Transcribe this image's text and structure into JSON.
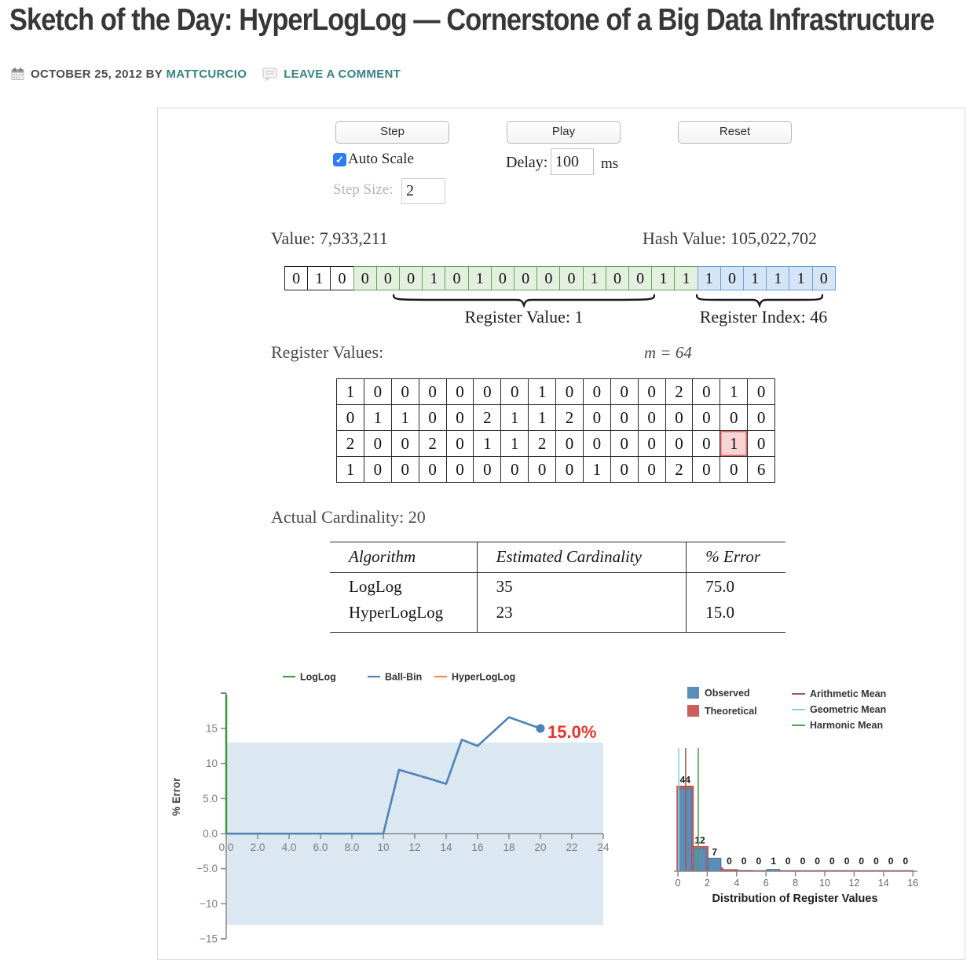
{
  "header": {
    "title": "Sketch of the Day: HyperLogLog — Cornerstone of a Big Data Infrastructure",
    "date": "OCTOBER 25, 2012",
    "by": "BY",
    "author": "MATTCURCIO",
    "comment_link": "LEAVE A COMMENT"
  },
  "controls": {
    "step_label": "Step",
    "play_label": "Play",
    "reset_label": "Reset",
    "auto_scale_label": "Auto Scale",
    "auto_scale_checked": "✓",
    "step_size_label": "Step Size:",
    "step_size_value": "2",
    "delay_label": "Delay:",
    "delay_value": "100",
    "delay_unit": "ms"
  },
  "hash_panel": {
    "value_label": "Value: 7,933,211",
    "hash_label": "Hash Value: 105,022,702",
    "bit_segments": [
      {
        "name": "unused",
        "bits": [
          "0",
          "1",
          "0"
        ]
      },
      {
        "name": "register_value_bits",
        "bits": [
          "0",
          "0",
          "0",
          "1",
          "0",
          "1",
          "0",
          "0",
          "0",
          "0",
          "1",
          "0",
          "0",
          "1",
          "1"
        ]
      },
      {
        "name": "register_index_bits",
        "bits": [
          "1",
          "0",
          "1",
          "1",
          "1",
          "0"
        ]
      }
    ],
    "register_value_label": "Register Value: 1",
    "register_index_label": "Register Index: 46"
  },
  "registers": {
    "label": "Register Values:",
    "m_label": "m = 64",
    "rows": [
      [
        "1",
        "0",
        "0",
        "0",
        "0",
        "0",
        "0",
        "1",
        "0",
        "0",
        "0",
        "0",
        "2",
        "0",
        "1",
        "0"
      ],
      [
        "0",
        "1",
        "1",
        "0",
        "0",
        "2",
        "1",
        "1",
        "2",
        "0",
        "0",
        "0",
        "0",
        "0",
        "0",
        "0"
      ],
      [
        "2",
        "0",
        "0",
        "2",
        "0",
        "1",
        "1",
        "2",
        "0",
        "0",
        "0",
        "0",
        "0",
        "0",
        "1",
        "0"
      ],
      [
        "1",
        "0",
        "0",
        "0",
        "0",
        "0",
        "0",
        "0",
        "0",
        "1",
        "0",
        "0",
        "2",
        "0",
        "0",
        "6"
      ]
    ],
    "highlight": {
      "row": 2,
      "col": 14
    }
  },
  "cardinality": {
    "label": "Actual Cardinality: 20",
    "headers": [
      "Algorithm",
      "Estimated Cardinality",
      "% Error"
    ],
    "rows": [
      [
        "LogLog",
        "35",
        "75.0"
      ],
      [
        "HyperLogLog",
        "23",
        "15.0"
      ]
    ]
  },
  "chart_data": [
    {
      "type": "line",
      "ylabel": "% Error",
      "xlim": [
        0,
        24
      ],
      "ylim": [
        -15,
        20
      ],
      "grid": false,
      "legend_position": "top",
      "legend": [
        {
          "name": "LogLog",
          "color": "#3f9b42"
        },
        {
          "name": "Ball-Bin",
          "color": "#4c82b6"
        },
        {
          "name": "HyperLogLog",
          "color": "#f28e44"
        }
      ],
      "band": {
        "y0": -13,
        "y1": 13,
        "color": "#dbe7f1"
      },
      "vertical_marker": {
        "x": 0,
        "color": "#3f9b42"
      },
      "series": [
        {
          "name": "Ball-Bin",
          "color": "#4c82b6",
          "points": [
            [
              0,
              0
            ],
            [
              1,
              0
            ],
            [
              2,
              0
            ],
            [
              3,
              0
            ],
            [
              4,
              0
            ],
            [
              5,
              0
            ],
            [
              6,
              0
            ],
            [
              7,
              0
            ],
            [
              8,
              0
            ],
            [
              9,
              0
            ],
            [
              10,
              0
            ],
            [
              11,
              9.1
            ],
            [
              12,
              8.45
            ],
            [
              13,
              7.8
            ],
            [
              14,
              7.1
            ],
            [
              15,
              13.4
            ],
            [
              16,
              12.5
            ],
            [
              18,
              16.6
            ],
            [
              20,
              15.0
            ]
          ]
        }
      ],
      "end_point": [
        20,
        15.0
      ],
      "end_label": {
        "text": "15.0%",
        "color": "#e53530"
      },
      "yticks": [
        [
          15,
          "15"
        ],
        [
          10,
          "10"
        ],
        [
          5,
          "5.0"
        ],
        [
          0,
          "0.0"
        ],
        [
          -5,
          "−5.0"
        ],
        [
          -10,
          "−10"
        ],
        [
          -15,
          "−15"
        ]
      ],
      "xticks": [
        [
          0,
          "0.0"
        ],
        [
          2,
          "2.0"
        ],
        [
          4,
          "4.0"
        ],
        [
          6,
          "6.0"
        ],
        [
          8,
          "8.0"
        ],
        [
          10,
          "10"
        ],
        [
          12,
          "12"
        ],
        [
          14,
          "14"
        ],
        [
          16,
          "16"
        ],
        [
          18,
          "18"
        ],
        [
          20,
          "20"
        ],
        [
          22,
          "22"
        ],
        [
          24,
          "24"
        ]
      ]
    },
    {
      "type": "bar",
      "title": "Distribution of Register Values",
      "categories": [
        0,
        1,
        2,
        3,
        4,
        5,
        6,
        7,
        8,
        9,
        10,
        11,
        12,
        13,
        14,
        15
      ],
      "series": [
        {
          "name": "Observed",
          "color": "#5b8db8",
          "values": [
            44,
            12,
            7,
            0,
            0,
            0,
            1,
            0,
            0,
            0,
            0,
            0,
            0,
            0,
            0,
            0
          ]
        },
        {
          "name": "Theoretical",
          "color": "#cd5c5c",
          "values": [
            45.5,
            13.2,
            1.9,
            0.9,
            0.5,
            0.4,
            0.4,
            0.4,
            0.4,
            0.4,
            0.4,
            0.4,
            0.4,
            0.4,
            0.4,
            0.4
          ]
        }
      ],
      "bar_labels": [
        "44",
        "12",
        "7",
        "0",
        "0",
        "0",
        "1",
        "0",
        "0",
        "0",
        "0",
        "0",
        "0",
        "0",
        "0",
        "0"
      ],
      "xticks": [
        [
          0,
          "0"
        ],
        [
          2,
          "2"
        ],
        [
          4,
          "4"
        ],
        [
          6,
          "6"
        ],
        [
          8,
          "8"
        ],
        [
          10,
          "10"
        ],
        [
          12,
          "12"
        ],
        [
          14,
          "14"
        ],
        [
          16,
          "16"
        ]
      ],
      "mean_lines": [
        {
          "name": "Arithmetic Mean",
          "x": 0.53,
          "color": "#9c5b55"
        },
        {
          "name": "Geometric Mean",
          "x": 0.06,
          "color": "#82d3ea"
        },
        {
          "name": "Harmonic Mean",
          "x": 1.39,
          "color": "#4aa54a"
        }
      ]
    }
  ],
  "colors": {
    "link_teal": "#35827f",
    "bit_value_fill": "#e3f0df",
    "bit_value_border": "#67a556",
    "bit_index_fill": "#d5e5f5",
    "bit_index_border": "#6b9fd8",
    "highlight_fill": "#f9d4d4",
    "highlight_border": "#e06666",
    "band": "#dbe7f1",
    "axis": "#8a8a8a",
    "tick_text": "#7d7d7d",
    "error_red": "#e53530"
  }
}
